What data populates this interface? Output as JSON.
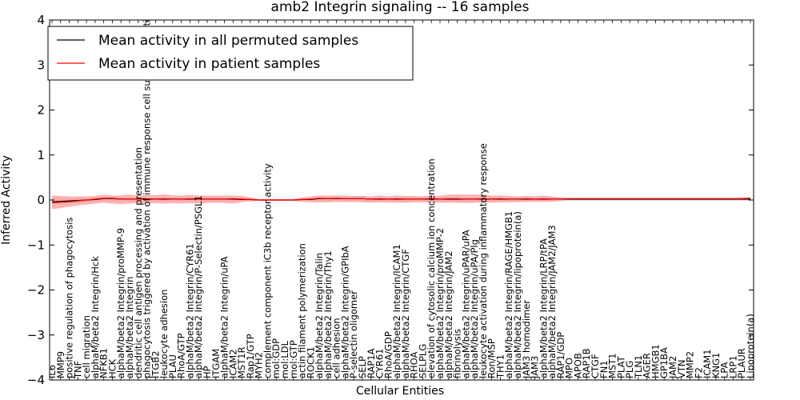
{
  "chart_data": {
    "type": "line",
    "title": "amb2 Integrin signaling -- 16 samples",
    "xlabel": "Cellular Entities",
    "ylabel": "Inferred Activity",
    "ylim": [
      -4,
      4
    ],
    "yticks": [
      "−4",
      "−3",
      "−2",
      "−1",
      "0",
      "1",
      "2",
      "3",
      "4"
    ],
    "yticks_values": [
      -4,
      -3,
      -2,
      -1,
      0,
      1,
      2,
      3,
      4
    ],
    "grid": false,
    "legend_position": "top-left",
    "colors": {
      "permuted": "#000000",
      "patient": "#ff0000",
      "patient_band": "#ff9999",
      "permuted_band": "#c8c8c8"
    },
    "categories": [
      "IL6",
      "MMP9",
      "positive regulation of phagocytosis",
      "TNF",
      "cell migration",
      "alphaM/beta2 Integrin/Hck",
      "NFKB1",
      "HCK",
      "alphaM/beta2 Integrin/proMMP-9",
      "alphaM/beta2 Integrin",
      "dendritic cell antigen processing and presentation",
      "phagocytosis triggered by activation of immune response cell surface activating receptor",
      "ITGB2",
      "leukocyte adhesion",
      "PLAU",
      "RhoA/GTP",
      "alphaM/beta2 Integrin/CYR61",
      "alphaM/beta2 Integrin/P-Selectin/PSGL1",
      "HP",
      "ITGAM",
      "alphaM/beta2 Integrin/uPA",
      "ICAM2",
      "MST1R",
      "Rap1/GTP",
      "MYH2",
      "complement component iC3b receptor activity",
      "mol:GDP",
      "mol:LDL",
      "mol:GTP",
      "actin filament polymerization",
      "ROCK1",
      "alphaM/beta2 Integrin/Talin",
      "alphaM/beta2 Integrin/Thy1",
      "cell adhesion",
      "alphaM/beta2 Integrin/GPIbA",
      "P-selectin oligomer",
      "SELP",
      "RAP1A",
      "CYR61",
      "RhoA/GDP",
      "alphaM/beta2 Integrin/ICAM1",
      "alphaM/beta2 Integrin/CTGF",
      "RHOA",
      "SELPLG",
      "elevation of cytosolic calcium ion concentration",
      "alphaM/beta2 Integrin/proMMP-2",
      "alphaM/beta2 Integrin/JAM2",
      "fibrinolysis",
      "alphaM/beta2 Integrin/uPAR/uPA",
      "alphaM/beta2 Integrin/uPA/Plg",
      "leukocyte activation during inflammatory response",
      "Ron/MSP",
      "THY1",
      "alphaM/beta2 Integrin/RAGE/HMGB1",
      "alphaM/beta2 Integrin/lipoprotein(a)",
      "JAM3 homodimer",
      "JAM3",
      "alphaM/beta2 Integrin/LRP/tPA",
      "alphaM/beta2 Integrin/JAM2/JAM3",
      "RAP1/GDP",
      "MPO",
      "APOB",
      "RAP1B",
      "CTGF",
      "FN1",
      "MST1",
      "PLAT",
      "PLG",
      "TLN1",
      "AGER",
      "HMGB1",
      "GP1BA",
      "JAM2",
      "VTN",
      "MMP2",
      "F2",
      "ICAM1",
      "KNG1",
      "LPA",
      "LRP1",
      "PLAUR",
      "Lipoprotein(a)"
    ],
    "series": [
      {
        "name": "Mean activity in all permuted samples",
        "color": "#000000",
        "values": [
          -0.04,
          -0.03,
          -0.02,
          -0.01,
          0.0,
          0.01,
          0.03,
          0.03,
          0.02,
          0.02,
          0.02,
          0.02,
          0.02,
          0.02,
          0.02,
          0.02,
          0.02,
          0.02,
          0.02,
          0.02,
          0.02,
          0.02,
          0.01,
          0.01,
          0.0,
          0.0,
          0.0,
          0.0,
          0.0,
          0.01,
          0.01,
          0.03,
          0.03,
          0.03,
          0.03,
          0.03,
          0.03,
          0.02,
          0.02,
          0.02,
          0.02,
          0.02,
          0.02,
          0.02,
          0.02,
          0.02,
          0.02,
          0.02,
          0.02,
          0.02,
          0.02,
          0.02,
          0.02,
          0.02,
          0.02,
          0.02,
          0.02,
          0.02,
          0.02,
          0.02,
          0.02,
          0.02,
          0.02,
          0.02,
          0.02,
          0.02,
          0.02,
          0.02,
          0.02,
          0.02,
          0.02,
          0.02,
          0.02,
          0.02,
          0.02,
          0.02,
          0.02,
          0.02,
          0.02,
          0.02,
          0.02,
          0.02
        ]
      },
      {
        "name": "Mean activity in patient samples",
        "color": "#ff0000",
        "values": [
          -0.06,
          -0.05,
          -0.04,
          -0.02,
          0.0,
          0.02,
          0.04,
          0.04,
          0.02,
          0.02,
          0.02,
          0.03,
          0.02,
          0.03,
          0.02,
          0.02,
          0.03,
          0.02,
          0.02,
          0.02,
          0.02,
          0.03,
          0.02,
          0.01,
          0.0,
          0.0,
          0.0,
          0.0,
          0.0,
          0.01,
          0.02,
          0.04,
          0.03,
          0.04,
          0.03,
          0.03,
          0.03,
          0.02,
          0.03,
          0.02,
          0.03,
          0.02,
          0.02,
          0.02,
          0.03,
          0.02,
          0.03,
          0.03,
          0.02,
          0.02,
          0.03,
          0.02,
          0.03,
          0.02,
          0.02,
          0.03,
          0.02,
          0.03,
          0.02,
          0.02,
          0.03,
          0.03,
          0.03,
          0.03,
          0.03,
          0.03,
          0.03,
          0.03,
          0.03,
          0.03,
          0.03,
          0.03,
          0.03,
          0.03,
          0.03,
          0.03,
          0.03,
          0.03,
          0.03,
          0.03,
          0.03,
          0.04
        ]
      }
    ],
    "bands": {
      "patient_upper": [
        0.1,
        0.09,
        0.08,
        0.08,
        0.08,
        0.09,
        0.12,
        0.1,
        0.1,
        0.12,
        0.1,
        0.12,
        0.1,
        0.13,
        0.1,
        0.1,
        0.11,
        0.1,
        0.1,
        0.1,
        0.1,
        0.1,
        0.09,
        0.06,
        0.02,
        0.02,
        0.02,
        0.02,
        0.02,
        0.06,
        0.08,
        0.1,
        0.1,
        0.1,
        0.1,
        0.09,
        0.09,
        0.08,
        0.1,
        0.08,
        0.1,
        0.09,
        0.09,
        0.08,
        0.1,
        0.09,
        0.12,
        0.12,
        0.12,
        0.12,
        0.12,
        0.1,
        0.1,
        0.09,
        0.08,
        0.09,
        0.08,
        0.1,
        0.08,
        0.06,
        0.05,
        0.05,
        0.05,
        0.05,
        0.05,
        0.05,
        0.05,
        0.05,
        0.05,
        0.05,
        0.05,
        0.05,
        0.05,
        0.05,
        0.05,
        0.05,
        0.05,
        0.05,
        0.05,
        0.05,
        0.06,
        0.06
      ],
      "patient_lower": [
        -0.2,
        -0.18,
        -0.15,
        -0.12,
        -0.1,
        -0.08,
        -0.06,
        -0.08,
        -0.09,
        -0.08,
        -0.07,
        -0.08,
        -0.07,
        -0.08,
        -0.07,
        -0.08,
        -0.07,
        -0.08,
        -0.07,
        -0.06,
        -0.07,
        -0.08,
        -0.05,
        -0.03,
        -0.02,
        -0.02,
        -0.02,
        -0.02,
        -0.02,
        -0.04,
        -0.05,
        -0.05,
        -0.05,
        -0.04,
        -0.05,
        -0.04,
        -0.05,
        -0.06,
        -0.05,
        -0.06,
        -0.06,
        -0.06,
        -0.05,
        -0.05,
        -0.06,
        -0.06,
        -0.06,
        -0.06,
        -0.07,
        -0.06,
        -0.06,
        -0.06,
        -0.05,
        -0.05,
        -0.05,
        -0.04,
        -0.04,
        -0.04,
        -0.04,
        -0.01,
        0.0,
        0.0,
        0.0,
        0.0,
        0.0,
        0.0,
        0.0,
        0.0,
        0.0,
        0.0,
        0.0,
        0.0,
        0.0,
        0.0,
        0.0,
        0.0,
        0.0,
        0.0,
        0.0,
        0.0,
        0.0,
        0.0
      ],
      "permuted_upper": [
        0.04,
        0.04,
        0.04,
        0.04,
        0.04,
        0.05,
        0.06,
        0.06,
        0.05,
        0.05,
        0.05,
        0.05,
        0.05,
        0.05,
        0.05,
        0.05,
        0.05,
        0.05,
        0.05,
        0.05,
        0.05,
        0.05,
        0.04,
        0.03,
        0.01,
        0.01,
        0.01,
        0.01,
        0.01,
        0.03,
        0.04,
        0.05,
        0.05,
        0.05,
        0.05,
        0.05,
        0.05,
        0.05,
        0.05,
        0.05,
        0.05,
        0.05,
        0.05,
        0.05,
        0.05,
        0.05,
        0.05,
        0.05,
        0.05,
        0.05,
        0.05,
        0.05,
        0.05,
        0.05,
        0.05,
        0.05,
        0.05,
        0.05,
        0.05,
        0.04,
        0.03,
        0.03,
        0.03,
        0.03,
        0.03,
        0.03,
        0.03,
        0.03,
        0.03,
        0.03,
        0.03,
        0.03,
        0.03,
        0.03,
        0.03,
        0.03,
        0.03,
        0.03,
        0.03,
        0.03,
        0.03,
        0.03
      ],
      "permuted_lower": [
        -0.1,
        -0.09,
        -0.08,
        -0.07,
        -0.05,
        -0.04,
        -0.03,
        -0.03,
        -0.03,
        -0.03,
        -0.03,
        -0.03,
        -0.03,
        -0.03,
        -0.03,
        -0.03,
        -0.03,
        -0.03,
        -0.03,
        -0.03,
        -0.03,
        -0.03,
        -0.03,
        -0.02,
        -0.01,
        -0.01,
        -0.01,
        -0.01,
        -0.01,
        -0.02,
        -0.03,
        -0.05,
        -0.05,
        -0.04,
        -0.04,
        -0.04,
        -0.04,
        -0.04,
        -0.04,
        -0.04,
        -0.04,
        -0.04,
        -0.04,
        -0.04,
        -0.04,
        -0.04,
        -0.04,
        -0.04,
        -0.04,
        -0.04,
        -0.04,
        -0.04,
        -0.04,
        -0.04,
        -0.04,
        -0.04,
        -0.04,
        -0.04,
        -0.04,
        -0.03,
        -0.02,
        -0.02,
        -0.02,
        -0.02,
        -0.02,
        -0.02,
        -0.02,
        -0.02,
        -0.02,
        -0.02,
        -0.02,
        -0.02,
        -0.02,
        -0.02,
        -0.02,
        -0.02,
        -0.02,
        -0.02,
        -0.02,
        -0.02,
        -0.02,
        -0.02
      ]
    }
  }
}
